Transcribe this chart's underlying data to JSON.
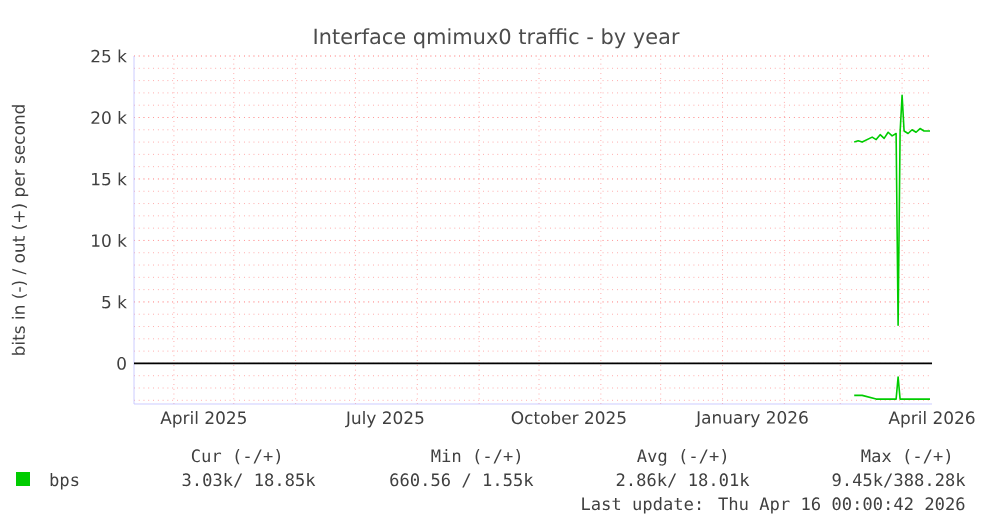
{
  "chart_data": {
    "type": "line",
    "title": "Interface qmimux0 traffic - by year",
    "ylabel": "bits in (-) / out (+) per second",
    "xlim": [
      "2025-03-12",
      "2026-04-16"
    ],
    "xticks": [
      {
        "value": "2025-04-16",
        "label": "April 2025"
      },
      {
        "value": "2025-07-16",
        "label": "July 2025"
      },
      {
        "value": "2025-10-16",
        "label": "October 2025"
      },
      {
        "value": "2026-01-16",
        "label": "January 2026"
      },
      {
        "value": "2026-04-16",
        "label": "April 2026"
      }
    ],
    "ylim": [
      -3300,
      25000
    ],
    "yticks": [
      {
        "value": 0,
        "label": "0"
      },
      {
        "value": 5000,
        "label": "5 k"
      },
      {
        "value": 10000,
        "label": "10 k"
      },
      {
        "value": 15000,
        "label": "15 k"
      },
      {
        "value": 20000,
        "label": "20 k"
      },
      {
        "value": 25000,
        "label": "25 k"
      }
    ],
    "grid": true,
    "legend": "bottom left",
    "marker": "none",
    "line_style": "solid",
    "ref_lines": [
      {
        "axis": "y",
        "value": 0,
        "color": "#000000"
      }
    ],
    "series": [
      {
        "name": "bps",
        "color": "#00cc00",
        "x": [
          "2026-03-08",
          "2026-03-10",
          "2026-03-12",
          "2026-03-17",
          "2026-03-19",
          "2026-03-21",
          "2026-03-23",
          "2026-03-25",
          "2026-03-27",
          "2026-03-29",
          "2026-03-30",
          "2026-03-31",
          "2026-04-01",
          "2026-04-02",
          "2026-04-04",
          "2026-04-06",
          "2026-04-08",
          "2026-04-10",
          "2026-04-12",
          "2026-04-15"
        ],
        "values": [
          18000,
          18100,
          18000,
          18400,
          18200,
          18600,
          18300,
          18800,
          18500,
          18700,
          3100,
          18800,
          21800,
          18900,
          18700,
          19000,
          18800,
          19100,
          18900,
          18900
        ]
      },
      {
        "color": "#00cc00",
        "x": [
          "2026-03-08",
          "2026-03-12",
          "2026-03-19",
          "2026-03-25",
          "2026-03-29",
          "2026-03-30",
          "2026-03-31",
          "2026-04-08",
          "2026-04-15"
        ],
        "values": [
          -2600,
          -2600,
          -2900,
          -2900,
          -2900,
          -1100,
          -2900,
          -2900,
          -2900
        ]
      }
    ],
    "annotations": [
      "Cur (-/+)",
      "Min (-/+)",
      "Avg (-/+)",
      "Max (-/+)",
      "3.03k/ 18.85k",
      "660.56 / 1.55k",
      "2.86k/ 18.01k",
      "9.45k/388.28k",
      "Last update: Thu Apr 16 00:00:42 2026"
    ]
  }
}
